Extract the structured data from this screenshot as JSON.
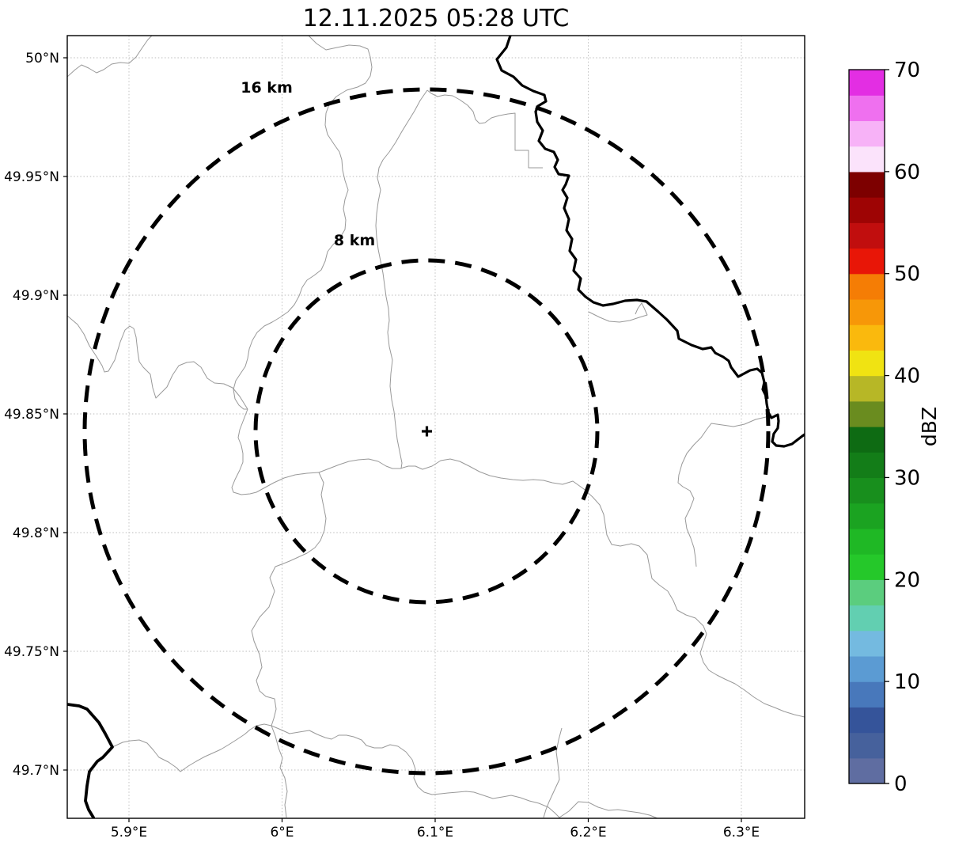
{
  "title": "12.11.2025 05:28 UTC",
  "map": {
    "x_axis": {
      "tick_labels": [
        "5.9°E",
        "6°E",
        "6.1°E",
        "6.2°E",
        "6.3°E"
      ]
    },
    "y_axis": {
      "tick_labels": [
        "50°N",
        "49.95°N",
        "49.9°N",
        "49.85°N",
        "49.8°N",
        "49.75°N",
        "49.7°N"
      ]
    },
    "range_rings": [
      {
        "label": "16 km",
        "radius_km": 16
      },
      {
        "label": "8 km",
        "radius_km": 8
      }
    ],
    "center_marker": "+",
    "line_colors": {
      "admin_boundary": "#999999",
      "river_border": "#000000",
      "grid": "#bbbbbb"
    }
  },
  "colorbar": {
    "label": "dBZ",
    "min": 0,
    "max": 70,
    "tick_labels": [
      "0",
      "10",
      "20",
      "30",
      "40",
      "50",
      "60",
      "70"
    ],
    "tick_values": [
      0,
      10,
      20,
      30,
      40,
      50,
      60,
      70
    ],
    "segment_step_dbz": 2.5,
    "segment_colors_bottom_to_top": [
      "#5f6da1",
      "#46619c",
      "#35549a",
      "#4878bb",
      "#5b9bd3",
      "#74bae0",
      "#62cfb1",
      "#5bcd7e",
      "#25c82a",
      "#1fb825",
      "#1ba321",
      "#188f1d",
      "#137d18",
      "#0e6b13",
      "#6a8c1f",
      "#b7b726",
      "#f0e312",
      "#fab90d",
      "#f79708",
      "#f57d05",
      "#e81607",
      "#c10e0e",
      "#9e0404",
      "#7d0000",
      "#fbe3fb",
      "#f7b2f7",
      "#ef70ef",
      "#e32ee3"
    ]
  }
}
